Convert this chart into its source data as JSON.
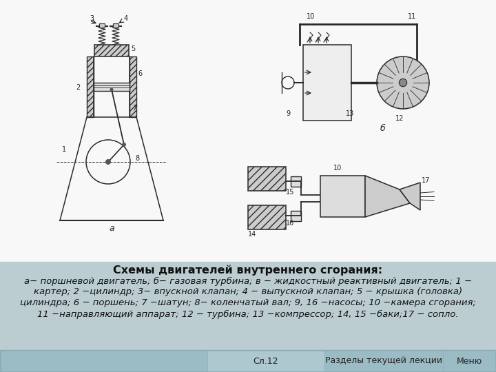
{
  "title": "Схемы двигателей внутреннего сгорания:",
  "description_lines": [
    "а− поршневой двигатель; б− газовая турбина; в − жидкостный реактивный двигатель; 1 −",
    "картер; 2 −цилиндр; 3− впускной клапан; 4 − выпускной клапан; 5 − крышка (головка)",
    "цилиндра; 6 − поршень; 7 −шатун; 8− коленчатый вал; 9, 16 −насосы; 10 −камера сгорания;",
    "11 −направляющий аппарат; 12 − турбина; 13 −компрессор; 14, 15 −баки;17 − сопло."
  ],
  "footer_center": "Сл.12",
  "footer_right1": "Разделы текущей лекции",
  "footer_right2": "Меню",
  "bg_color": "#f5f5f5",
  "diagram_bg": "#ffffff",
  "text_area_bg": "#bccdd2",
  "footer_bg": "#8aadb5",
  "title_fontsize": 11.5,
  "body_fontsize": 9.5,
  "footer_fontsize": 9
}
